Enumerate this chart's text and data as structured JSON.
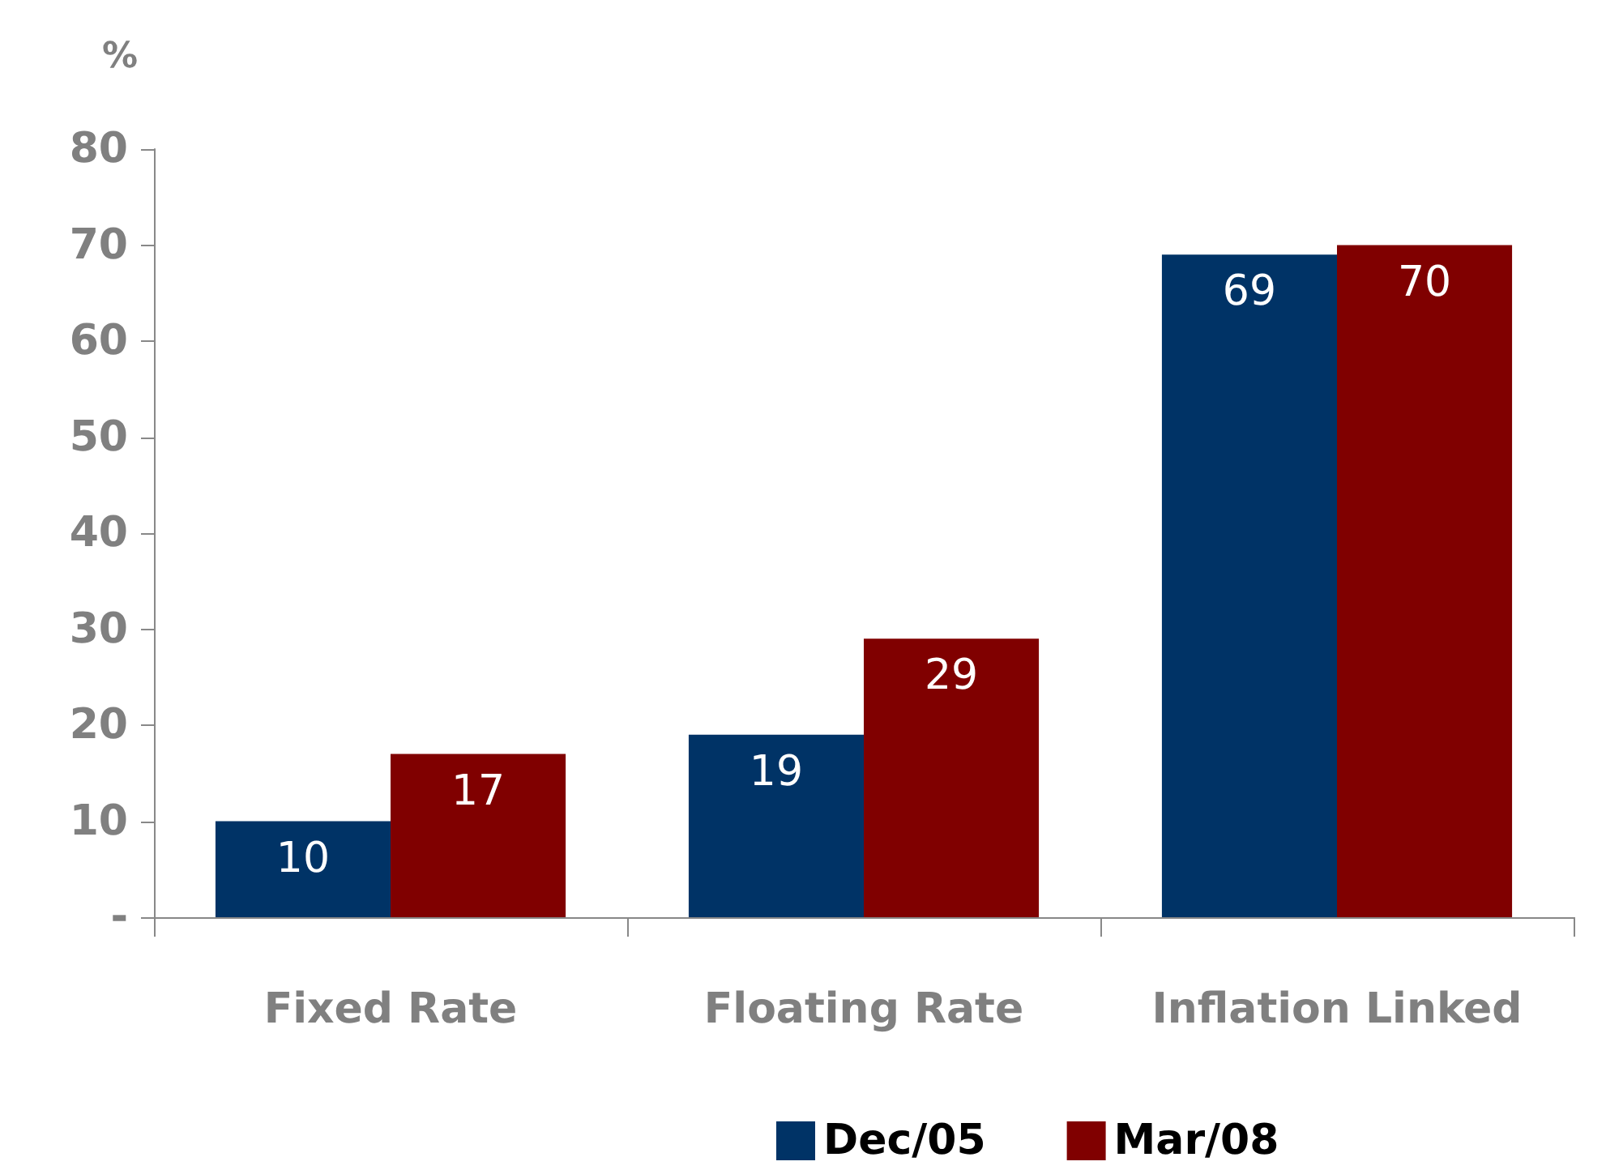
{
  "chart_data": {
    "type": "bar",
    "ylabel": "%",
    "categories": [
      "Fixed Rate",
      "Floating Rate",
      "Inflation Linked"
    ],
    "series": [
      {
        "name": "Dec/05",
        "color": "#003366",
        "values": [
          10,
          19,
          69
        ]
      },
      {
        "name": "Mar/08",
        "color": "#800000",
        "values": [
          17,
          29,
          70
        ]
      }
    ],
    "ylim": [
      0,
      80
    ],
    "yticks": [
      {
        "value": 0,
        "label": "-"
      },
      10,
      20,
      30,
      40,
      50,
      60,
      70,
      80
    ],
    "grid": false,
    "legend": "bottom",
    "data_labels": true
  }
}
